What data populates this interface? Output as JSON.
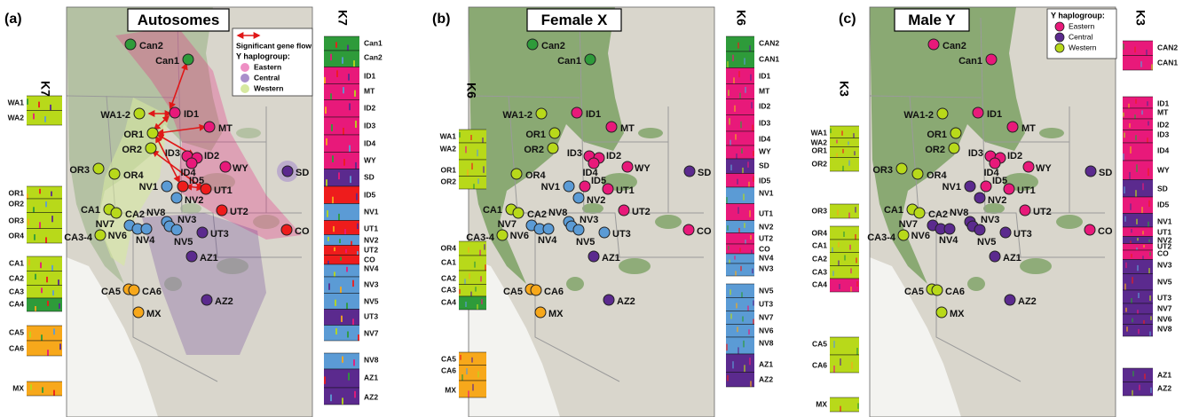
{
  "panels": [
    {
      "label": "(a)",
      "title": "Autosomes",
      "legend": {
        "gene_flow": "Significant gene flow",
        "heading": "Y haplogroup:",
        "items": [
          {
            "name": "Eastern",
            "color": "#ee8fc4"
          },
          {
            "name": "Central",
            "color": "#a98fcb"
          },
          {
            "name": "Western",
            "color": "#d6e8a0"
          }
        ]
      },
      "left_k": "K7",
      "left_bars": [
        "WA1",
        "WA2",
        "OR1",
        "OR2",
        "OR3",
        "OR4",
        "CA1",
        "CA2",
        "CA3",
        "CA4",
        "CA5",
        "CA6",
        "MX"
      ],
      "right_k": "K7",
      "right_bars": [
        "Can1",
        "Can2",
        "ID1",
        "MT",
        "ID2",
        "ID3",
        "ID4",
        "WY",
        "SD",
        "ID5",
        "NV1",
        "UT1",
        "NV2",
        "UT2",
        "CO",
        "NV4",
        "NV3",
        "NV5",
        "UT3",
        "NV7",
        "NV8",
        "AZ1",
        "AZ2"
      ],
      "sites": [
        {
          "name": "Can2",
          "color": "#2e9b3a"
        },
        {
          "name": "Can1",
          "color": "#2e9b3a"
        },
        {
          "name": "WA1-2",
          "color": "#b8d91a"
        },
        {
          "name": "ID1",
          "color": "#e8197a"
        },
        {
          "name": "MT",
          "color": "#e8197a"
        },
        {
          "name": "OR1",
          "color": "#b8d91a"
        },
        {
          "name": "OR2",
          "color": "#b8d91a"
        },
        {
          "name": "ID3",
          "color": "#e8197a"
        },
        {
          "name": "ID2",
          "color": "#e8197a"
        },
        {
          "name": "ID4",
          "color": "#e8197a"
        },
        {
          "name": "WY",
          "color": "#e8197a"
        },
        {
          "name": "SD",
          "color": "#5b2a8e"
        },
        {
          "name": "OR3",
          "color": "#b8d91a"
        },
        {
          "name": "OR4",
          "color": "#b8d91a"
        },
        {
          "name": "NV1",
          "color": "#5b9bd5"
        },
        {
          "name": "ID5",
          "color": "#ee1c1c"
        },
        {
          "name": "UT1",
          "color": "#ee1c1c"
        },
        {
          "name": "NV2",
          "color": "#5b9bd5"
        },
        {
          "name": "UT2",
          "color": "#ee1c1c"
        },
        {
          "name": "CO",
          "color": "#ee1c1c"
        },
        {
          "name": "CA1",
          "color": "#b8d91a"
        },
        {
          "name": "CA2",
          "color": "#b8d91a"
        },
        {
          "name": "NV8",
          "color": "#5b9bd5"
        },
        {
          "name": "NV7",
          "color": "#5b9bd5"
        },
        {
          "name": "NV3",
          "color": "#5b9bd5"
        },
        {
          "name": "NV6",
          "color": "#5b9bd5"
        },
        {
          "name": "NV5",
          "color": "#5b9bd5"
        },
        {
          "name": "NV4",
          "color": "#5b9bd5"
        },
        {
          "name": "UT3",
          "color": "#5b2a8e"
        },
        {
          "name": "CA3-4",
          "color": "#b8d91a"
        },
        {
          "name": "AZ1",
          "color": "#5b2a8e"
        },
        {
          "name": "CA5",
          "color": "#f7a81b"
        },
        {
          "name": "CA6",
          "color": "#f7a81b"
        },
        {
          "name": "AZ2",
          "color": "#5b2a8e"
        },
        {
          "name": "MX",
          "color": "#f7a81b"
        }
      ]
    },
    {
      "label": "(b)",
      "title": "Female X",
      "left_k": "K6",
      "left_bars": [
        "WA1",
        "WA2",
        "OR1",
        "OR2",
        "OR4",
        "CA1",
        "CA2",
        "CA3",
        "CA4",
        "CA5",
        "CA6",
        "MX"
      ],
      "right_k": "K6",
      "right_bars": [
        "CAN2",
        "CAN1",
        "ID1",
        "MT",
        "ID2",
        "ID3",
        "ID4",
        "WY",
        "SD",
        "ID5",
        "NV1",
        "UT1",
        "NV2",
        "UT2",
        "CO",
        "NV4",
        "NV3",
        "NV5",
        "UT3",
        "NV7",
        "NV6",
        "NV8",
        "AZ1",
        "AZ2"
      ],
      "sites": [
        {
          "name": "Can2",
          "color": "#2e9b3a"
        },
        {
          "name": "Can1",
          "color": "#2e9b3a"
        },
        {
          "name": "WA1-2",
          "color": "#b8d91a"
        },
        {
          "name": "ID1",
          "color": "#e8197a"
        },
        {
          "name": "MT",
          "color": "#e8197a"
        },
        {
          "name": "OR1",
          "color": "#b8d91a"
        },
        {
          "name": "OR2",
          "color": "#b8d91a"
        },
        {
          "name": "ID3",
          "color": "#e8197a"
        },
        {
          "name": "ID2",
          "color": "#e8197a"
        },
        {
          "name": "ID4",
          "color": "#e8197a"
        },
        {
          "name": "WY",
          "color": "#e8197a"
        },
        {
          "name": "SD",
          "color": "#5b2a8e"
        },
        {
          "name": "OR4",
          "color": "#b8d91a"
        },
        {
          "name": "NV1",
          "color": "#5b9bd5"
        },
        {
          "name": "ID5",
          "color": "#e8197a"
        },
        {
          "name": "UT1",
          "color": "#e8197a"
        },
        {
          "name": "NV2",
          "color": "#5b9bd5"
        },
        {
          "name": "UT2",
          "color": "#e8197a"
        },
        {
          "name": "CO",
          "color": "#e8197a"
        },
        {
          "name": "CA1",
          "color": "#b8d91a"
        },
        {
          "name": "CA2",
          "color": "#b8d91a"
        },
        {
          "name": "NV8",
          "color": "#5b9bd5"
        },
        {
          "name": "NV7",
          "color": "#5b9bd5"
        },
        {
          "name": "NV3",
          "color": "#5b9bd5"
        },
        {
          "name": "NV6",
          "color": "#5b9bd5"
        },
        {
          "name": "NV5",
          "color": "#5b9bd5"
        },
        {
          "name": "NV4",
          "color": "#5b9bd5"
        },
        {
          "name": "UT3",
          "color": "#5b9bd5"
        },
        {
          "name": "CA3-4",
          "color": "#b8d91a"
        },
        {
          "name": "AZ1",
          "color": "#5b2a8e"
        },
        {
          "name": "CA5",
          "color": "#f7a81b"
        },
        {
          "name": "CA6",
          "color": "#f7a81b"
        },
        {
          "name": "AZ2",
          "color": "#5b2a8e"
        },
        {
          "name": "MX",
          "color": "#f7a81b"
        }
      ]
    },
    {
      "label": "(c)",
      "title": "Male Y",
      "legend": {
        "heading": "Y haplogroup:",
        "items": [
          {
            "name": "Eastern",
            "color": "#e8197a"
          },
          {
            "name": "Central",
            "color": "#5b2a8e"
          },
          {
            "name": "Western",
            "color": "#b8d91a"
          }
        ]
      },
      "left_k": "K3",
      "left_bars": [
        "WA1",
        "WA2",
        "OR1",
        "OR2",
        "OR3",
        "OR4",
        "CA1",
        "CA2",
        "CA3",
        "CA4",
        "CA5",
        "CA6",
        "MX"
      ],
      "right_k": "K3",
      "right_bars": [
        "CAN2",
        "CAN1",
        "ID1",
        "MT",
        "ID2",
        "ID3",
        "ID4",
        "WY",
        "SD",
        "ID5",
        "NV1",
        "UT1",
        "NV2",
        "UT2",
        "CO",
        "NV3",
        "NV5",
        "UT3",
        "NV7",
        "NV6",
        "NV8",
        "AZ1",
        "AZ2"
      ],
      "sites": [
        {
          "name": "Can2",
          "color": "#e8197a"
        },
        {
          "name": "Can1",
          "color": "#e8197a"
        },
        {
          "name": "WA1-2",
          "color": "#b8d91a"
        },
        {
          "name": "ID1",
          "color": "#e8197a"
        },
        {
          "name": "MT",
          "color": "#e8197a"
        },
        {
          "name": "OR1",
          "color": "#b8d91a"
        },
        {
          "name": "OR2",
          "color": "#b8d91a"
        },
        {
          "name": "ID3",
          "color": "#e8197a"
        },
        {
          "name": "ID2",
          "color": "#e8197a"
        },
        {
          "name": "ID4",
          "color": "#e8197a"
        },
        {
          "name": "WY",
          "color": "#e8197a"
        },
        {
          "name": "SD",
          "color": "#5b2a8e"
        },
        {
          "name": "OR3",
          "color": "#b8d91a"
        },
        {
          "name": "OR4",
          "color": "#b8d91a"
        },
        {
          "name": "NV1",
          "color": "#5b2a8e"
        },
        {
          "name": "ID5",
          "color": "#e8197a"
        },
        {
          "name": "UT1",
          "color": "#e8197a"
        },
        {
          "name": "NV2",
          "color": "#5b2a8e"
        },
        {
          "name": "UT2",
          "color": "#e8197a"
        },
        {
          "name": "CO",
          "color": "#e8197a"
        },
        {
          "name": "CA1",
          "color": "#b8d91a"
        },
        {
          "name": "CA2",
          "color": "#b8d91a"
        },
        {
          "name": "NV8",
          "color": "#5b2a8e"
        },
        {
          "name": "NV7",
          "color": "#5b2a8e"
        },
        {
          "name": "NV3",
          "color": "#5b2a8e"
        },
        {
          "name": "NV6",
          "color": "#5b2a8e"
        },
        {
          "name": "NV5",
          "color": "#5b2a8e"
        },
        {
          "name": "NV4",
          "color": "#5b2a8e"
        },
        {
          "name": "UT3",
          "color": "#5b2a8e"
        },
        {
          "name": "CA3-4",
          "color": "#b8d91a"
        },
        {
          "name": "AZ1",
          "color": "#5b2a8e"
        },
        {
          "name": "CA5",
          "color": "#b8d91a"
        },
        {
          "name": "CA6",
          "color": "#b8d91a"
        },
        {
          "name": "AZ2",
          "color": "#5b2a8e"
        },
        {
          "name": "MX",
          "color": "#b8d91a"
        }
      ]
    }
  ]
}
